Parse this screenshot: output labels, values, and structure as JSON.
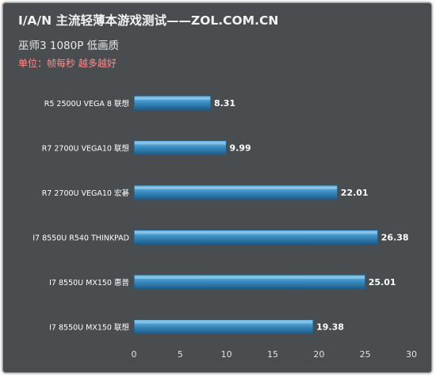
{
  "header": {
    "title": "I/A/N 主流轻薄本游戏测试——ZOL.COM.CN",
    "subtitle": "巫师3 1080P 低画质",
    "unit": "单位：帧每秒 越多越好"
  },
  "colors": {
    "background": "#4a4d50",
    "bar_fill": "#3a8fc4",
    "bar_highlight": "#79c0ea",
    "bar_border": "#1e5a85",
    "text": "#ffffff",
    "axis_text": "#e0e0e0",
    "unit_text": "#ff8b8b"
  },
  "chart_data": {
    "type": "bar",
    "orientation": "horizontal",
    "categories": [
      "R5 2500U VEGA 8 联想",
      "R7 2700U VEGA10 联想",
      "R7 2700U VEGA10 宏碁",
      "I7 8550U R540 THINKPAD",
      "I7 8550U MX150 惠普",
      "I7 8550U MX150 联想"
    ],
    "values": [
      8.31,
      9.99,
      22.01,
      26.38,
      25.01,
      19.38
    ],
    "value_labels": [
      "8.31",
      "9.99",
      "22.01",
      "26.38",
      "25.01",
      "19.38"
    ],
    "xlim": [
      0,
      30
    ],
    "xticks": [
      0,
      5,
      10,
      15,
      20,
      25,
      30
    ],
    "xticklabels": [
      "0",
      "5",
      "10",
      "15",
      "20",
      "25",
      "30"
    ],
    "title": "I/A/N 主流轻薄本游戏测试——ZOL.COM.CN",
    "xlabel": "",
    "ylabel": "",
    "grid": false,
    "legend": "none"
  }
}
